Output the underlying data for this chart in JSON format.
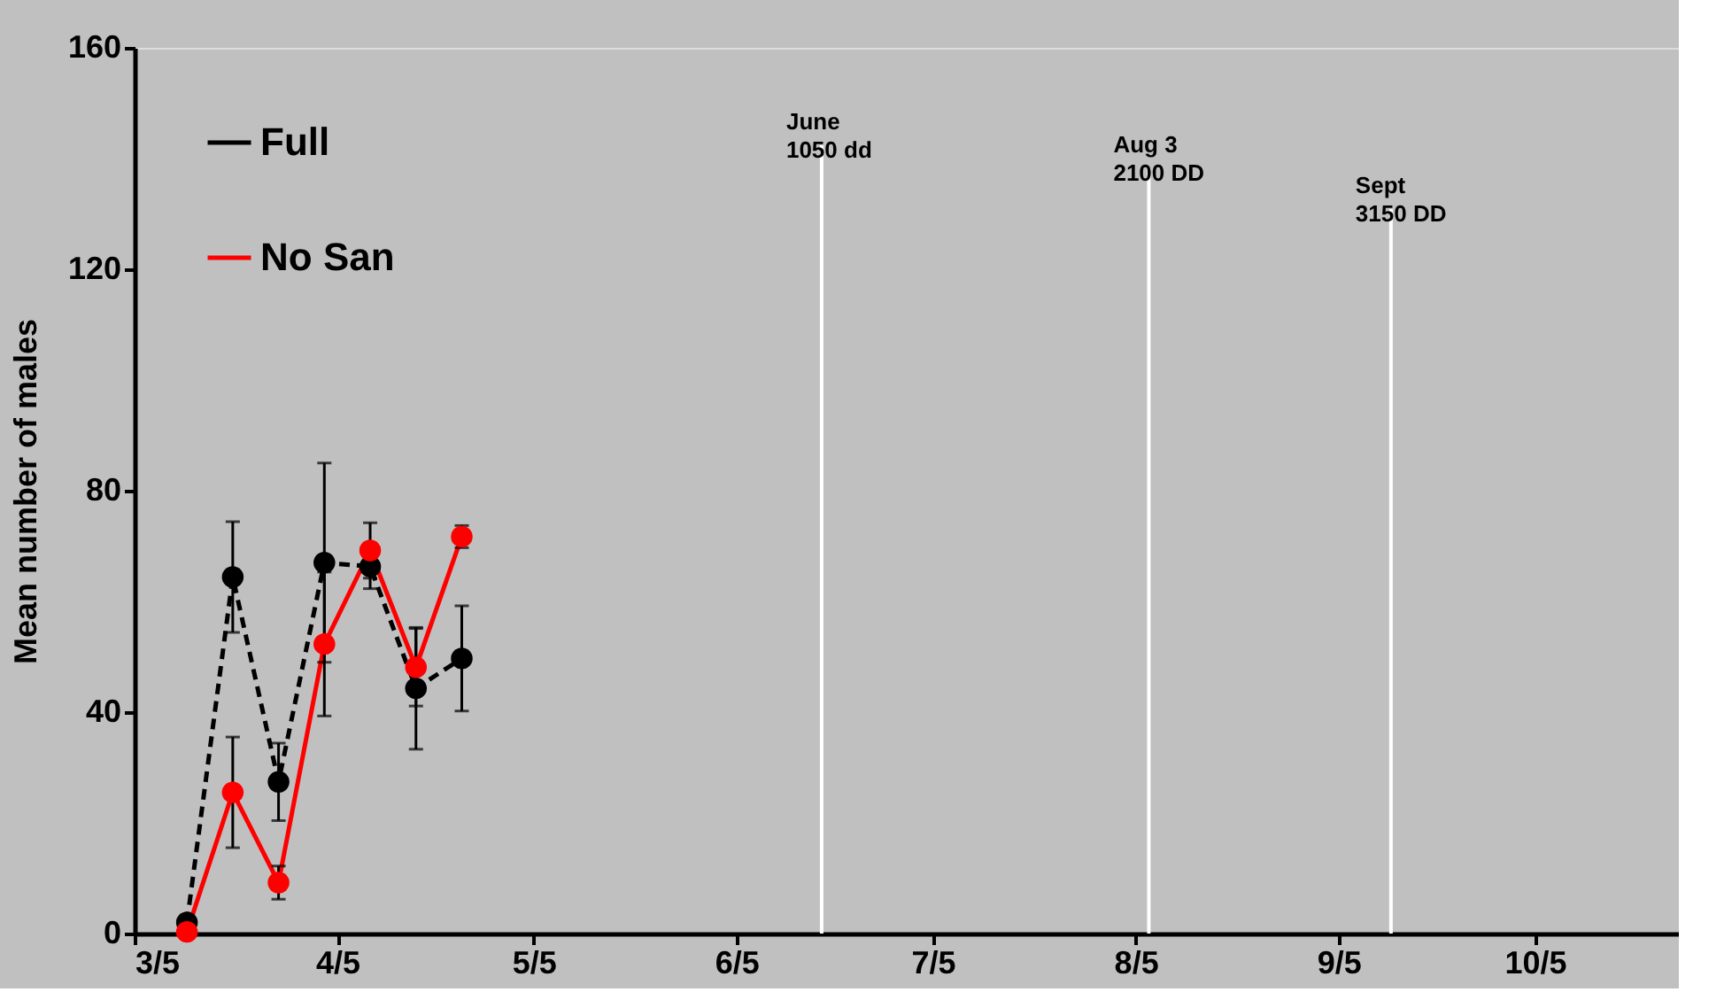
{
  "chart_data": {
    "type": "line",
    "ylabel": "Mean number of males",
    "x": [
      "--03-13",
      "--03-20",
      "--03-27",
      "--04-03",
      "--04-10",
      "--04-17",
      "--04-24"
    ],
    "series": [
      {
        "name": "Full",
        "color": "#000000",
        "line_style": "dashed",
        "values": [
          2,
          64.4,
          27.4,
          67,
          66.3,
          44.3,
          49.7
        ],
        "errors": [
          null,
          10,
          7,
          18,
          4,
          11,
          9.5
        ]
      },
      {
        "name": "No San",
        "color": "#ff0000",
        "line_style": "solid",
        "values": [
          0.3,
          25.5,
          9.2,
          52.3,
          69.2,
          48.1,
          71.7
        ],
        "errors": [
          null,
          10,
          3,
          13,
          5,
          7,
          2
        ]
      }
    ],
    "marker": "circle",
    "xlim": [
      "--03-05",
      "--10-27"
    ],
    "xticks": [
      {
        "value": "--03-05",
        "label": "3/5"
      },
      {
        "value": "--04-05",
        "label": "4/5"
      },
      {
        "value": "--05-05",
        "label": "5/5"
      },
      {
        "value": "--06-05",
        "label": "6/5"
      },
      {
        "value": "--07-05",
        "label": "7/5"
      },
      {
        "value": "--08-05",
        "label": "8/5"
      },
      {
        "value": "--09-05",
        "label": "9/5"
      },
      {
        "value": "--10-05",
        "label": "10/5"
      }
    ],
    "ylim": [
      0,
      160
    ],
    "yticks": [
      0,
      40,
      80,
      120,
      160
    ],
    "ref_lines": [
      {
        "axis": "x",
        "value": "--06-18",
        "label": "June\n1050 dd",
        "color": "#ffffff"
      },
      {
        "axis": "x",
        "value": "--08-07",
        "label": "Aug 3\n2100 DD",
        "color": "#ffffff"
      },
      {
        "axis": "x",
        "value": "--09-13",
        "label": "Sept\n3150 DD",
        "color": "#ffffff"
      }
    ],
    "grid": false,
    "legend": "top left"
  }
}
